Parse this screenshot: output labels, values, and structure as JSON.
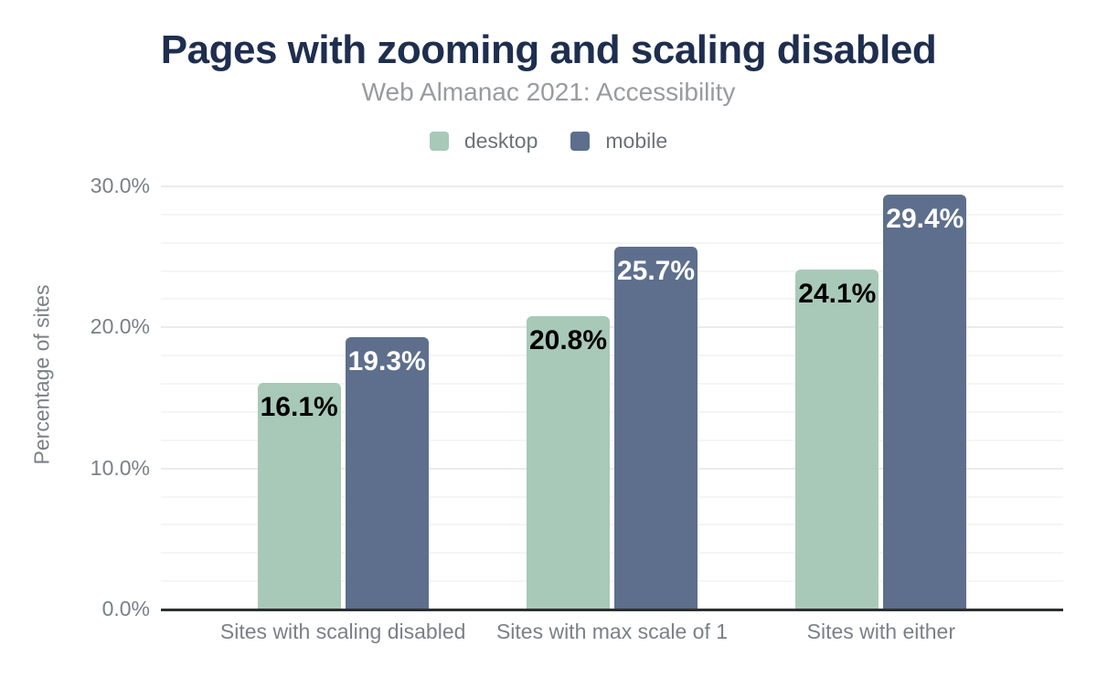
{
  "chart_data": {
    "type": "bar",
    "title": "Pages with zooming and scaling disabled",
    "subtitle": "Web Almanac 2021: Accessibility",
    "ylabel": "Percentage of sites",
    "xlabel": "",
    "categories": [
      "Sites with scaling disabled",
      "Sites with max scale of 1",
      "Sites with either"
    ],
    "series": [
      {
        "name": "desktop",
        "color": "#a8c9b8",
        "label_color": "#000000",
        "values": [
          16.1,
          20.8,
          24.1
        ]
      },
      {
        "name": "mobile",
        "color": "#5d6f8c",
        "label_color": "#ffffff",
        "values": [
          19.3,
          25.7,
          29.4
        ]
      }
    ],
    "value_label_suffix": "%",
    "ylim": [
      0,
      30
    ],
    "y_ticks": [
      {
        "value": 30,
        "label": "30.0%"
      },
      {
        "value": 20,
        "label": "20.0%"
      },
      {
        "value": 10,
        "label": "10.0%"
      },
      {
        "value": 0,
        "label": "0.0%"
      }
    ],
    "grid": {
      "on": true,
      "minor_step": 2,
      "major_step": 10
    },
    "legend_position": "top"
  },
  "colors": {
    "title": "#1e2e4f",
    "subtitle": "#999b9e",
    "legend_text": "#6e7278",
    "axis_text": "#7b8087",
    "grid_minor": "#f5f5f6",
    "grid_major": "#ebebec",
    "axis_line": "#2d2f31",
    "background": "#ffffff"
  }
}
